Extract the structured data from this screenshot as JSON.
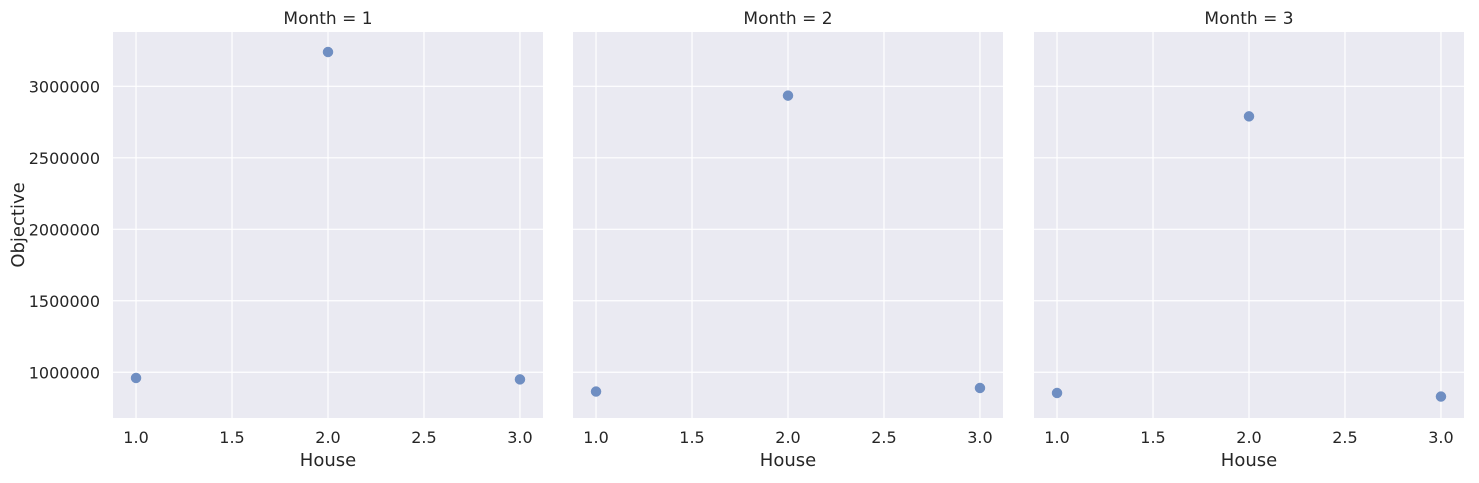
{
  "chart_data": [
    {
      "type": "scatter",
      "title": "Month = 1",
      "xlabel": "House",
      "ylabel": "Objective",
      "x": [
        1.0,
        2.0,
        3.0
      ],
      "y": [
        960000,
        3240000,
        950000
      ],
      "xlim": [
        0.88,
        3.12
      ],
      "ylim": [
        680000,
        3380000
      ],
      "xticks": [
        "1.0",
        "1.5",
        "2.0",
        "2.5",
        "3.0"
      ],
      "yticks": [
        "1000000",
        "1500000",
        "2000000",
        "2500000",
        "3000000"
      ],
      "grid": true
    },
    {
      "type": "scatter",
      "title": "Month = 2",
      "xlabel": "House",
      "ylabel": "",
      "x": [
        1.0,
        2.0,
        3.0
      ],
      "y": [
        865000,
        2935000,
        890000
      ],
      "xlim": [
        0.88,
        3.12
      ],
      "ylim": [
        680000,
        3380000
      ],
      "xticks": [
        "1.0",
        "1.5",
        "2.0",
        "2.5",
        "3.0"
      ],
      "yticks": [],
      "grid": true
    },
    {
      "type": "scatter",
      "title": "Month = 3",
      "xlabel": "House",
      "ylabel": "",
      "x": [
        1.0,
        2.0,
        3.0
      ],
      "y": [
        855000,
        2790000,
        830000
      ],
      "xlim": [
        0.88,
        3.12
      ],
      "ylim": [
        680000,
        3380000
      ],
      "xticks": [
        "1.0",
        "1.5",
        "2.0",
        "2.5",
        "3.0"
      ],
      "yticks": [],
      "grid": true
    }
  ],
  "colors": {
    "background": "#eaeaf2",
    "grid": "#ffffff",
    "marker": "#6f8ec2",
    "text": "#262626"
  }
}
